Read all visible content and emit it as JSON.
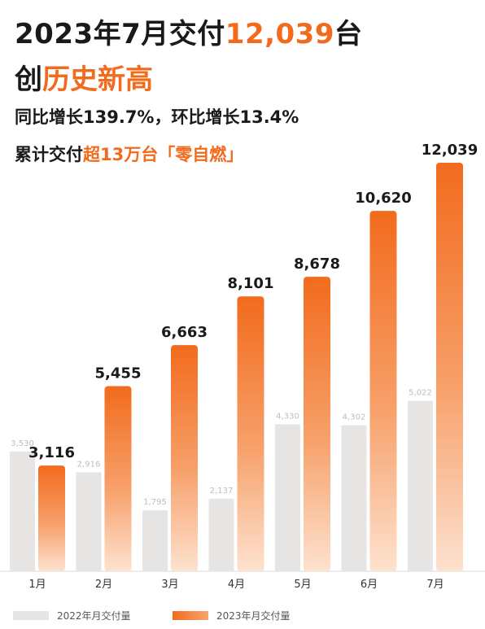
{
  "headline": {
    "line1_a": "2023年7月交付",
    "line1_b": "12,039",
    "line1_c": "台",
    "line2_a": "创",
    "line2_b": "历史新高",
    "sub1": "同比增长139.7%，环比增长13.4%",
    "sub2_a": "累计交付",
    "sub2_b": "超13万台「零自燃」"
  },
  "colors": {
    "orange": "#f26b1d",
    "orange_light": "#fde2cf",
    "gray": "#e7e5e3"
  },
  "chart_data": {
    "type": "bar",
    "categories": [
      "1月",
      "2月",
      "3月",
      "4月",
      "5月",
      "6月",
      "7月"
    ],
    "series": [
      {
        "name": "2022年月交付量",
        "values": [
          3530,
          2916,
          1795,
          2137,
          4330,
          4302,
          5022
        ],
        "labels": [
          "3,530",
          "2,916",
          "1,795",
          "2,137",
          "4,330",
          "4,302",
          "5,022"
        ]
      },
      {
        "name": "2023年月交付量",
        "values": [
          3116,
          5455,
          6663,
          8101,
          8678,
          10620,
          12039
        ],
        "labels": [
          "3,116",
          "5,455",
          "6,663",
          "8,101",
          "8,678",
          "10,620",
          "12,039"
        ]
      }
    ],
    "ylim": [
      0,
      12039
    ],
    "grid": false,
    "legend": "bottom-left"
  }
}
